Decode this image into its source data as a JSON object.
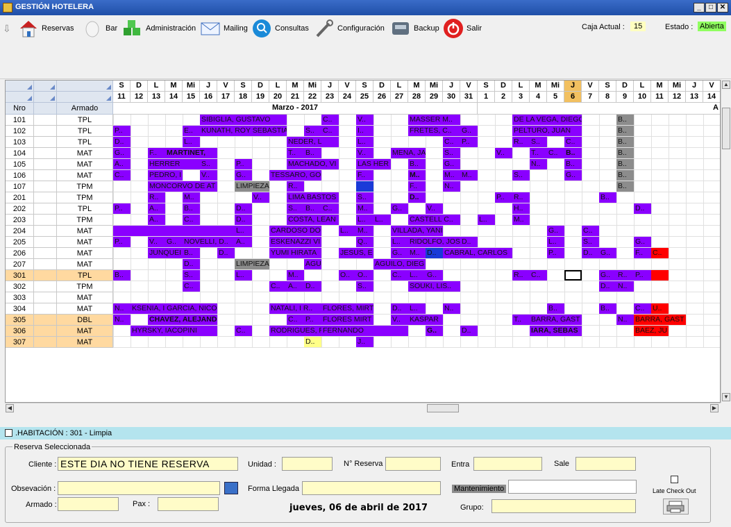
{
  "window": {
    "title": "GESTIÓN HOTELERA"
  },
  "toolbar": {
    "items": [
      {
        "label": "Reservas",
        "icon": "house-icon"
      },
      {
        "label": "Bar",
        "icon": "hand-icon"
      },
      {
        "label": "Administración",
        "icon": "cubes-icon"
      },
      {
        "label": "Mailing",
        "icon": "mail-icon"
      },
      {
        "label": "Consultas",
        "icon": "magnifier-icon"
      },
      {
        "label": "Configuración",
        "icon": "wrench-icon"
      },
      {
        "label": "Backup",
        "icon": "disk-icon"
      },
      {
        "label": "Salir",
        "icon": "power-icon"
      }
    ],
    "caja_label": "Caja Actual :",
    "caja_value": "15",
    "estado_label": "Estado :",
    "estado_value": "Abierta"
  },
  "calendar": {
    "month_left": "Marzo - 2017",
    "month_right": "A",
    "days": [
      [
        "S",
        "11"
      ],
      [
        "D",
        "12"
      ],
      [
        "L",
        "13"
      ],
      [
        "M",
        "14"
      ],
      [
        "Mi",
        "15"
      ],
      [
        "J",
        "16"
      ],
      [
        "V",
        "17"
      ],
      [
        "S",
        "18"
      ],
      [
        "D",
        "19"
      ],
      [
        "L",
        "20"
      ],
      [
        "M",
        "21"
      ],
      [
        "Mi",
        "22"
      ],
      [
        "J",
        "23"
      ],
      [
        "V",
        "24"
      ],
      [
        "S",
        "25"
      ],
      [
        "D",
        "26"
      ],
      [
        "L",
        "27"
      ],
      [
        "M",
        "28"
      ],
      [
        "Mi",
        "29"
      ],
      [
        "J",
        "30"
      ],
      [
        "V",
        "31"
      ],
      [
        "S",
        "1"
      ],
      [
        "D",
        "2"
      ],
      [
        "L",
        "3"
      ],
      [
        "M",
        "4"
      ],
      [
        "Mi",
        "5"
      ],
      [
        "J",
        "6"
      ],
      [
        "V",
        "7"
      ],
      [
        "S",
        "8"
      ],
      [
        "D",
        "9"
      ],
      [
        "L",
        "10"
      ],
      [
        "M",
        "11"
      ],
      [
        "Mi",
        "12"
      ],
      [
        "J",
        "13"
      ],
      [
        "V",
        "14"
      ]
    ],
    "today_index": 26,
    "col_headers": {
      "nro": "Nro",
      "armado": "Armado"
    },
    "rooms": [
      [
        "101",
        "TPL"
      ],
      [
        "102",
        "TPL"
      ],
      [
        "103",
        "TPL"
      ],
      [
        "104",
        "MAT"
      ],
      [
        "105",
        "MAT"
      ],
      [
        "106",
        "MAT"
      ],
      [
        "107",
        "TPM"
      ],
      [
        "201",
        "TPM"
      ],
      [
        "202",
        "TPL"
      ],
      [
        "203",
        "TPM"
      ],
      [
        "204",
        "MAT"
      ],
      [
        "205",
        "MAT"
      ],
      [
        "206",
        "MAT"
      ],
      [
        "207",
        "MAT"
      ],
      [
        "301",
        "TPL"
      ],
      [
        "302",
        "TPM"
      ],
      [
        "303",
        "MAT"
      ],
      [
        "304",
        "MAT"
      ],
      [
        "305",
        "DBL"
      ],
      [
        "306",
        "MAT"
      ],
      [
        "307",
        "MAT"
      ]
    ],
    "highlight_rooms": [
      14,
      18,
      19,
      20
    ],
    "bookings": [
      [
        0,
        5,
        10,
        "SIBIGLIA, GUSTAVO",
        0
      ],
      [
        0,
        12,
        13,
        "C..",
        0
      ],
      [
        0,
        14,
        15,
        "V..",
        0
      ],
      [
        0,
        17,
        20,
        "MASSER M..",
        0
      ],
      [
        0,
        23,
        27,
        "DE LA VEGA, DIEGO",
        0
      ],
      [
        0,
        29,
        30,
        "B..",
        3
      ],
      [
        1,
        0,
        1,
        "P..",
        0
      ],
      [
        1,
        4,
        5,
        "E..",
        0
      ],
      [
        1,
        5,
        10,
        "KUNATH, ROY SEBASTIAN",
        0
      ],
      [
        1,
        11,
        12,
        "S..",
        0
      ],
      [
        1,
        12,
        13,
        "C..",
        0
      ],
      [
        1,
        14,
        15,
        "I..",
        0
      ],
      [
        1,
        17,
        20,
        "FRETES, C..",
        0
      ],
      [
        1,
        20,
        21,
        "G..",
        0
      ],
      [
        1,
        23,
        27,
        "PELTURO, JUAN",
        0
      ],
      [
        1,
        29,
        30,
        "B..",
        3
      ],
      [
        2,
        0,
        1,
        "D..",
        0
      ],
      [
        2,
        4,
        5,
        "L..",
        0
      ],
      [
        2,
        10,
        13,
        "NEDER, L",
        0
      ],
      [
        2,
        14,
        15,
        "L..",
        0
      ],
      [
        2,
        19,
        20,
        "C..",
        0
      ],
      [
        2,
        20,
        21,
        "P..",
        0
      ],
      [
        2,
        23,
        24,
        "R..",
        0
      ],
      [
        2,
        24,
        25,
        "S..",
        0
      ],
      [
        2,
        26,
        27,
        "C..",
        0
      ],
      [
        2,
        29,
        30,
        "B..",
        3
      ],
      [
        3,
        0,
        1,
        "G..",
        0
      ],
      [
        3,
        2,
        3,
        "F..",
        0
      ],
      [
        3,
        3,
        6,
        "MARTINET, ",
        0,
        1
      ],
      [
        3,
        10,
        11,
        "T..",
        0
      ],
      [
        3,
        11,
        12,
        "B..",
        0
      ],
      [
        3,
        14,
        15,
        "V..",
        0
      ],
      [
        3,
        16,
        18,
        "MENA, JA",
        0
      ],
      [
        3,
        19,
        20,
        "S..",
        0
      ],
      [
        3,
        22,
        23,
        "V..",
        0
      ],
      [
        3,
        24,
        25,
        "T..",
        0
      ],
      [
        3,
        25,
        26,
        "C..",
        0
      ],
      [
        3,
        26,
        27,
        "B..",
        0,
        1
      ],
      [
        3,
        29,
        30,
        "B..",
        3
      ],
      [
        4,
        0,
        1,
        "A..",
        0
      ],
      [
        4,
        2,
        5,
        "HERRER",
        0
      ],
      [
        4,
        5,
        6,
        "S..",
        0
      ],
      [
        4,
        7,
        8,
        "P..",
        0
      ],
      [
        4,
        10,
        13,
        "MACHADO, VI",
        0
      ],
      [
        4,
        14,
        16,
        "LAS HER",
        0
      ],
      [
        4,
        17,
        18,
        "B..",
        0
      ],
      [
        4,
        19,
        20,
        "G..",
        0
      ],
      [
        4,
        24,
        25,
        "N..",
        0
      ],
      [
        4,
        26,
        27,
        "B..",
        0
      ],
      [
        4,
        29,
        30,
        "B..",
        3
      ],
      [
        5,
        0,
        1,
        "C..",
        0
      ],
      [
        5,
        2,
        4,
        "PEDRO, I B..",
        0
      ],
      [
        5,
        5,
        6,
        "V..",
        0
      ],
      [
        5,
        7,
        8,
        "G..",
        0
      ],
      [
        5,
        9,
        12,
        "TESSARO, GO",
        0
      ],
      [
        5,
        14,
        15,
        "F..",
        0
      ],
      [
        5,
        17,
        18,
        "M..",
        0,
        1
      ],
      [
        5,
        19,
        20,
        "M..",
        0
      ],
      [
        5,
        20,
        21,
        "M..",
        0
      ],
      [
        5,
        23,
        24,
        "S..",
        0
      ],
      [
        5,
        26,
        27,
        "G..",
        0
      ],
      [
        5,
        29,
        30,
        "B..",
        3
      ],
      [
        6,
        2,
        6,
        "MONCORVO DE AT",
        0
      ],
      [
        6,
        7,
        9,
        "LIMPIEZA",
        3
      ],
      [
        6,
        10,
        11,
        "R..",
        0
      ],
      [
        6,
        14,
        15,
        "",
        1
      ],
      [
        6,
        17,
        18,
        "F..",
        0
      ],
      [
        6,
        19,
        20,
        "N..",
        0
      ],
      [
        6,
        29,
        30,
        "B..",
        3
      ],
      [
        7,
        2,
        3,
        "R..",
        0
      ],
      [
        7,
        4,
        5,
        "M..",
        0
      ],
      [
        7,
        8,
        9,
        "V..",
        0
      ],
      [
        7,
        10,
        13,
        "LIMA BASTOS",
        0
      ],
      [
        7,
        14,
        15,
        "S..",
        0
      ],
      [
        7,
        17,
        18,
        "D..",
        0,
        1
      ],
      [
        7,
        22,
        23,
        "P..",
        0
      ],
      [
        7,
        23,
        24,
        "R..",
        0
      ],
      [
        7,
        28,
        29,
        "B..",
        0
      ],
      [
        8,
        0,
        1,
        "P..",
        0
      ],
      [
        8,
        2,
        3,
        "A..",
        0
      ],
      [
        8,
        4,
        5,
        "B..",
        0
      ],
      [
        8,
        7,
        8,
        "D..",
        0
      ],
      [
        8,
        10,
        11,
        "S..",
        0
      ],
      [
        8,
        11,
        12,
        "B..",
        0
      ],
      [
        8,
        12,
        13,
        "C..",
        0
      ],
      [
        8,
        14,
        15,
        "M..",
        0
      ],
      [
        8,
        16,
        17,
        "G..",
        0
      ],
      [
        8,
        18,
        19,
        "V..",
        0
      ],
      [
        8,
        23,
        24,
        "H..",
        0
      ],
      [
        8,
        30,
        31,
        "D..",
        0
      ],
      [
        9,
        2,
        3,
        "A..",
        0
      ],
      [
        9,
        4,
        5,
        "C..",
        0
      ],
      [
        9,
        7,
        8,
        "D..",
        0
      ],
      [
        9,
        10,
        13,
        "COSTA, LEAN",
        0
      ],
      [
        9,
        14,
        15,
        "L..",
        0
      ],
      [
        9,
        15,
        16,
        "L..",
        0
      ],
      [
        9,
        17,
        20,
        "CASTELL C..",
        0
      ],
      [
        9,
        21,
        22,
        "L..",
        0
      ],
      [
        9,
        23,
        24,
        "M..",
        0
      ],
      [
        10,
        0,
        7,
        "",
        0
      ],
      [
        10,
        7,
        8,
        "L..",
        0
      ],
      [
        10,
        9,
        12,
        "CARDOSO DO",
        0
      ],
      [
        10,
        13,
        14,
        "L..",
        0
      ],
      [
        10,
        14,
        15,
        "M..",
        0
      ],
      [
        10,
        16,
        19,
        "VILLADA, YANINA",
        0
      ],
      [
        10,
        25,
        26,
        "G..",
        0
      ],
      [
        10,
        27,
        28,
        "C..",
        0
      ],
      [
        11,
        0,
        1,
        "P..",
        0
      ],
      [
        11,
        2,
        3,
        "V..",
        0
      ],
      [
        11,
        3,
        4,
        "G..",
        0
      ],
      [
        11,
        4,
        7,
        "NOVELLI, D..",
        0
      ],
      [
        11,
        7,
        8,
        "A..",
        0
      ],
      [
        11,
        9,
        12,
        "ESKENAZZI VI M..",
        0
      ],
      [
        11,
        14,
        15,
        "Q..",
        0
      ],
      [
        11,
        16,
        17,
        "L..",
        0
      ],
      [
        11,
        17,
        20,
        "RIDOLFO, JOS A..",
        0
      ],
      [
        11,
        20,
        21,
        "D..",
        0
      ],
      [
        11,
        25,
        26,
        "L..",
        0
      ],
      [
        11,
        27,
        28,
        "S..",
        0
      ],
      [
        11,
        30,
        31,
        "G..",
        0
      ],
      [
        12,
        2,
        4,
        "JUNQUEI",
        0
      ],
      [
        12,
        4,
        5,
        "B..",
        0
      ],
      [
        12,
        6,
        7,
        "D..",
        0
      ],
      [
        12,
        9,
        12,
        "YUMI HIRATA",
        0
      ],
      [
        12,
        13,
        15,
        "JESUS, E",
        0
      ],
      [
        12,
        16,
        17,
        "G..",
        0
      ],
      [
        12,
        17,
        18,
        "M..",
        0
      ],
      [
        12,
        18,
        19,
        "D..",
        1
      ],
      [
        12,
        19,
        23,
        "CABRAL, CARLOS",
        0
      ],
      [
        12,
        25,
        26,
        "P..",
        0
      ],
      [
        12,
        27,
        28,
        "D..",
        0
      ],
      [
        12,
        28,
        29,
        "G..",
        0
      ],
      [
        12,
        30,
        31,
        "F..",
        0
      ],
      [
        12,
        31,
        32,
        "C..",
        2
      ],
      [
        13,
        4,
        5,
        "D..",
        0
      ],
      [
        13,
        7,
        9,
        "LIMPIEZA",
        3
      ],
      [
        13,
        11,
        12,
        "AGUILO",
        0
      ],
      [
        13,
        15,
        18,
        "AGUILO, DIEG",
        0
      ],
      [
        14,
        0,
        1,
        "B..",
        0
      ],
      [
        14,
        4,
        5,
        "S..",
        0
      ],
      [
        14,
        7,
        8,
        "L..",
        0
      ],
      [
        14,
        10,
        11,
        "M..",
        0
      ],
      [
        14,
        13,
        14,
        "O..",
        0
      ],
      [
        14,
        14,
        15,
        "O..",
        0
      ],
      [
        14,
        16,
        17,
        "C..",
        0
      ],
      [
        14,
        17,
        18,
        "L..",
        0
      ],
      [
        14,
        18,
        19,
        "G..",
        0
      ],
      [
        14,
        23,
        24,
        "R..",
        0
      ],
      [
        14,
        24,
        25,
        "C..",
        0
      ],
      [
        14,
        28,
        29,
        "G..",
        0
      ],
      [
        14,
        29,
        30,
        "R..",
        0
      ],
      [
        14,
        30,
        31,
        "P..",
        0
      ],
      [
        14,
        31,
        32,
        "",
        2
      ],
      [
        15,
        4,
        5,
        "C..",
        0
      ],
      [
        15,
        9,
        10,
        "C..",
        0
      ],
      [
        15,
        10,
        11,
        "A..",
        0
      ],
      [
        15,
        11,
        12,
        "D..",
        0
      ],
      [
        15,
        14,
        15,
        "S..",
        0
      ],
      [
        15,
        17,
        20,
        "SOUKI, LIS..",
        0
      ],
      [
        15,
        28,
        29,
        "D..",
        0
      ],
      [
        15,
        29,
        30,
        "N..",
        0
      ],
      [
        17,
        0,
        1,
        "N..",
        0
      ],
      [
        17,
        1,
        6,
        "KSENIA, I GARCIA, NICO",
        0
      ],
      [
        17,
        9,
        12,
        "NATALI, I R..",
        0
      ],
      [
        17,
        12,
        15,
        "FLORES, MIRT",
        0
      ],
      [
        17,
        16,
        17,
        "D..",
        0
      ],
      [
        17,
        17,
        18,
        "L..",
        0
      ],
      [
        17,
        19,
        20,
        "N..",
        0
      ],
      [
        17,
        25,
        26,
        "B..",
        0
      ],
      [
        17,
        28,
        29,
        "B..",
        0
      ],
      [
        17,
        30,
        31,
        "C..",
        0
      ],
      [
        17,
        31,
        32,
        "U..",
        2
      ],
      [
        18,
        0,
        1,
        "N..",
        0
      ],
      [
        18,
        2,
        6,
        "CHAVEZ, ALEJANDRO",
        0,
        1
      ],
      [
        18,
        10,
        11,
        "C..",
        0
      ],
      [
        18,
        11,
        12,
        "P..",
        0
      ],
      [
        18,
        12,
        15,
        "FLORES MIRT",
        0
      ],
      [
        18,
        16,
        17,
        "V..",
        0
      ],
      [
        18,
        17,
        19,
        "KASPAR",
        0
      ],
      [
        18,
        23,
        24,
        "T..",
        0
      ],
      [
        18,
        24,
        27,
        "BARRA, GAST",
        0
      ],
      [
        18,
        29,
        30,
        "N..",
        0
      ],
      [
        18,
        30,
        33,
        "BARRA, GAST",
        2
      ],
      [
        19,
        1,
        6,
        "HYRSKY, IACOPINI",
        0
      ],
      [
        19,
        7,
        8,
        "C..",
        0
      ],
      [
        19,
        9,
        12,
        "RODRIGUES, ROGERIO",
        0
      ],
      [
        19,
        12,
        17,
        "FERNANDO",
        0
      ],
      [
        19,
        18,
        19,
        "G..",
        0,
        1
      ],
      [
        19,
        20,
        21,
        "D..",
        0
      ],
      [
        19,
        24,
        27,
        "IARA, SEBAS",
        0,
        1
      ],
      [
        19,
        30,
        32,
        "BAEZ, JU",
        2
      ],
      [
        20,
        11,
        12,
        "D..",
        4
      ],
      [
        20,
        14,
        15,
        "J..",
        0
      ]
    ],
    "selected_cell": [
      14,
      26
    ]
  },
  "habitacion_bar": ".HABITACIÓN : 301 - Limpia",
  "form": {
    "group_title": "Reserva Seleccionada",
    "cliente_label": "Cliente :",
    "cliente_value": "ESTE DIA NO TIENE RESERVA",
    "unidad_label": "Unidad :",
    "nreserva_label": "N° Reserva",
    "entra_label": "Entra",
    "sale_label": "Sale",
    "observacion_label": "Obsevación :",
    "forma_label": "Forma Llegada :",
    "mantenimiento_label": "Mantenimiento",
    "latecheckout_label": "Late Check Out",
    "armado_label": "Armado :",
    "pax_label": "Pax :",
    "date_text": "jueves, 06 de abril de 2017",
    "grupo_label": "Grupo:"
  },
  "colors": {
    "booking": "#8a00ff",
    "blue": "#1a3ad8",
    "red": "#ff0000",
    "gray": "#8c8c8c",
    "pending": "#ffff88",
    "highlight_row": "#ffd9a0",
    "today": "#f2c060"
  }
}
